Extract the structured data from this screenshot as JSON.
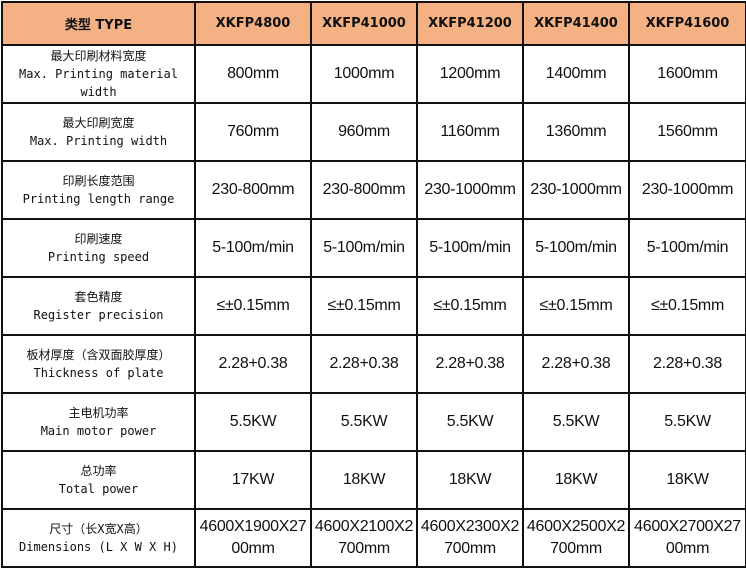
{
  "header": {
    "type_label": "类型 TYPE",
    "models": [
      "XKFP4800",
      "XKFP41000",
      "XKFP41200",
      "XKFP41400",
      "XKFP41600"
    ]
  },
  "header_color": "#F4B183",
  "rows": [
    {
      "cn": "最大印刷材料宽度",
      "en": "Max. Printing material width",
      "values": [
        "800mm",
        "1000mm",
        "1200mm",
        "1400mm",
        "1600mm"
      ]
    },
    {
      "cn": "最大印刷宽度",
      "en": "Max. Printing width",
      "values": [
        "760mm",
        "960mm",
        "1160mm",
        "1360mm",
        "1560mm"
      ]
    },
    {
      "cn": "印刷长度范围",
      "en": "Printing length range",
      "values": [
        "230-800mm",
        "230-800mm",
        "230-1000mm",
        "230-1000mm",
        "230-1000mm"
      ]
    },
    {
      "cn": "印刷速度",
      "en": "Printing speed",
      "values": [
        "5-100m/min",
        "5-100m/min",
        "5-100m/min",
        "5-100m/min",
        "5-100m/min"
      ]
    },
    {
      "cn": "套色精度",
      "en": "Register precision",
      "values": [
        "≤±0.15mm",
        "≤±0.15mm",
        "≤±0.15mm",
        "≤±0.15mm",
        "≤±0.15mm"
      ]
    },
    {
      "cn": "板材厚度（含双面胶厚度）",
      "en": "Thickness of plate",
      "values": [
        "2.28+0.38",
        "2.28+0.38",
        "2.28+0.38",
        "2.28+0.38",
        "2.28+0.38"
      ]
    },
    {
      "cn": "主电机功率",
      "en": "Main motor power",
      "values": [
        "5.5KW",
        "5.5KW",
        "5.5KW",
        "5.5KW",
        "5.5KW"
      ]
    },
    {
      "cn": "总功率",
      "en": "Total power",
      "values": [
        "17KW",
        "18KW",
        "18KW",
        "18KW",
        "18KW"
      ]
    },
    {
      "cn": "尺寸（长X宽X高）",
      "en": "Dimensions (L X W X H)",
      "values": [
        "4600X1900X2700mm",
        "4600X2100X2700mm",
        "4600X2300X2700mm",
        "4600X2500X2700mm",
        "4600X2700X2700mm"
      ]
    }
  ]
}
